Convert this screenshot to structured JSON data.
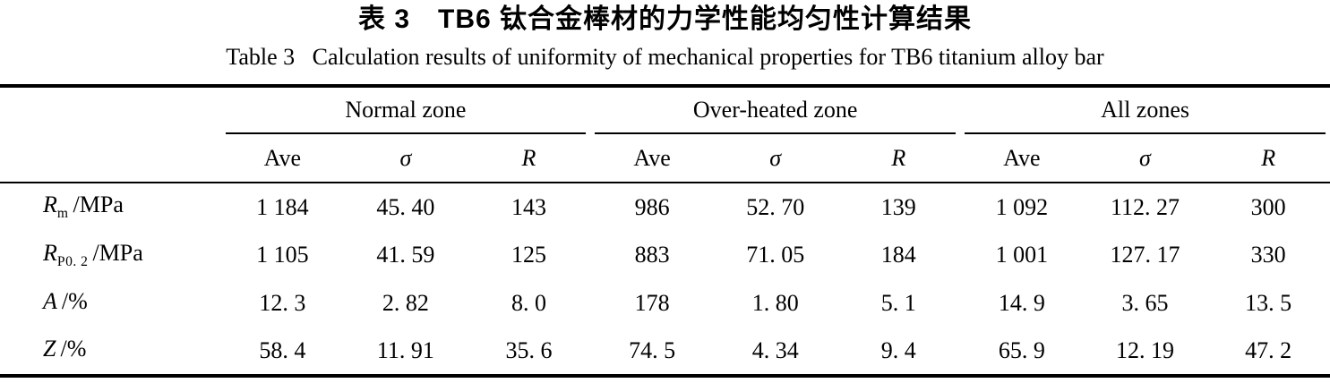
{
  "titles": {
    "zh": "表 3　TB6 钛合金棒材的力学性能均匀性计算结果",
    "en": "Table 3   Calculation results of uniformity of mechanical properties for TB6 titanium alloy bar"
  },
  "table": {
    "groups": [
      "Normal zone",
      "Over-heated zone",
      "All zones"
    ],
    "sub_headers": [
      "Ave",
      "σ",
      "R"
    ],
    "rows": [
      {
        "label_main": "R",
        "label_sub": "m",
        "label_unit": "/MPa",
        "values": [
          "1 184",
          "45. 40",
          "143",
          "986",
          "52. 70",
          "139",
          "1 092",
          "112. 27",
          "300"
        ]
      },
      {
        "label_main": "R",
        "label_sub": "P0. 2",
        "label_unit": "/MPa",
        "values": [
          "1 105",
          "41. 59",
          "125",
          "883",
          "71. 05",
          "184",
          "1 001",
          "127. 17",
          "330"
        ]
      },
      {
        "label_main": "A",
        "label_sub": "",
        "label_unit": "/%",
        "values": [
          "12. 3",
          "2. 82",
          "8. 0",
          "178",
          "1. 80",
          "5. 1",
          "14. 9",
          "3. 65",
          "13. 5"
        ]
      },
      {
        "label_main": "Z",
        "label_sub": "",
        "label_unit": "/%",
        "values": [
          "58. 4",
          "11. 91",
          "35. 6",
          "74. 5",
          "4. 34",
          "9. 4",
          "65. 9",
          "12. 19",
          "47. 2"
        ]
      }
    ],
    "colors": {
      "text": "#000000",
      "rule": "#000000",
      "background": "#ffffff"
    }
  }
}
